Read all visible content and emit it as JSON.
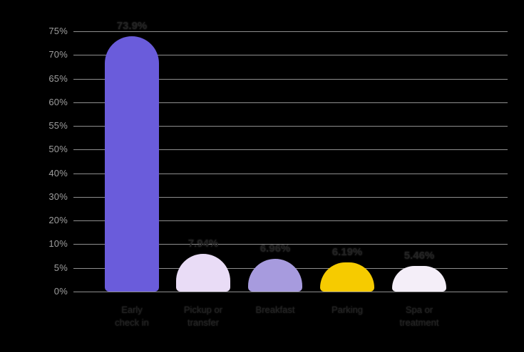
{
  "chart_data": {
    "type": "bar",
    "title": "",
    "xlabel": "",
    "ylabel": "",
    "categories": [
      "Early check in",
      "Pickup or transfer",
      "Breakfast",
      "Parking",
      "Spa or treatment"
    ],
    "category_lines": [
      [
        "Early",
        "check in"
      ],
      [
        "Pickup or",
        "transfer"
      ],
      [
        "Breakfast"
      ],
      [
        "Parking"
      ],
      [
        "Spa or",
        "treatment"
      ]
    ],
    "values": [
      73.9,
      7.94,
      6.96,
      6.19,
      5.46
    ],
    "value_labels": [
      "73.9%",
      "7.94%",
      "6.96%",
      "6.19%",
      "5.46%"
    ],
    "bar_colors": [
      "#6a5cdb",
      "#e9dcf6",
      "#a79bde",
      "#f6cb00",
      "#f4eef8"
    ],
    "y_ticks_top_to_bottom": [
      "75%",
      "70%",
      "65%",
      "60%",
      "55%",
      "50%",
      "40%",
      "30%",
      "20%",
      "10%",
      "5%",
      "0%"
    ],
    "y_tick_values_bottom_up": [
      0,
      5,
      10,
      20,
      30,
      40,
      50,
      55,
      60,
      65,
      70,
      75
    ],
    "axis_note": "gridlines evenly spaced; tick values non-linear (5% steps above 50%, 10% steps 10-50%, 5% step below 10%)",
    "legend": "none",
    "grid": "on",
    "background_color": "#000000",
    "gridline_color": "#8f8f8f",
    "tick_label_color": "#9e9e9e",
    "text_label_color": "#222222"
  }
}
